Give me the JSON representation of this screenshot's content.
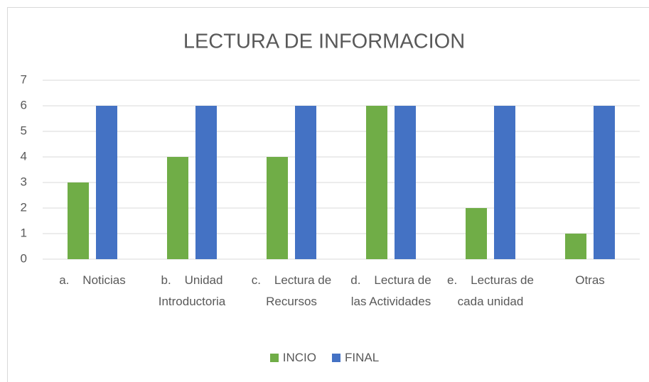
{
  "chart_data": {
    "type": "bar",
    "title": "LECTURA DE INFORMACION",
    "categories": [
      "a.    Noticias",
      "b.    Unidad Introductoria",
      "c.    Lectura de Recursos",
      "d.    Lectura de las Actividades",
      "e.    Lecturas de cada unidad",
      "Otras"
    ],
    "series": [
      {
        "name": "INCIO",
        "color": "#70ad47",
        "values": [
          3,
          4,
          4,
          6,
          2,
          1
        ]
      },
      {
        "name": "FINAL",
        "color": "#4472c4",
        "values": [
          6,
          6,
          6,
          6,
          6,
          6
        ]
      }
    ],
    "ylim": [
      0,
      7
    ],
    "yticks": [
      0,
      1,
      2,
      3,
      4,
      5,
      6,
      7
    ],
    "grid": true,
    "legend": "bottom"
  }
}
